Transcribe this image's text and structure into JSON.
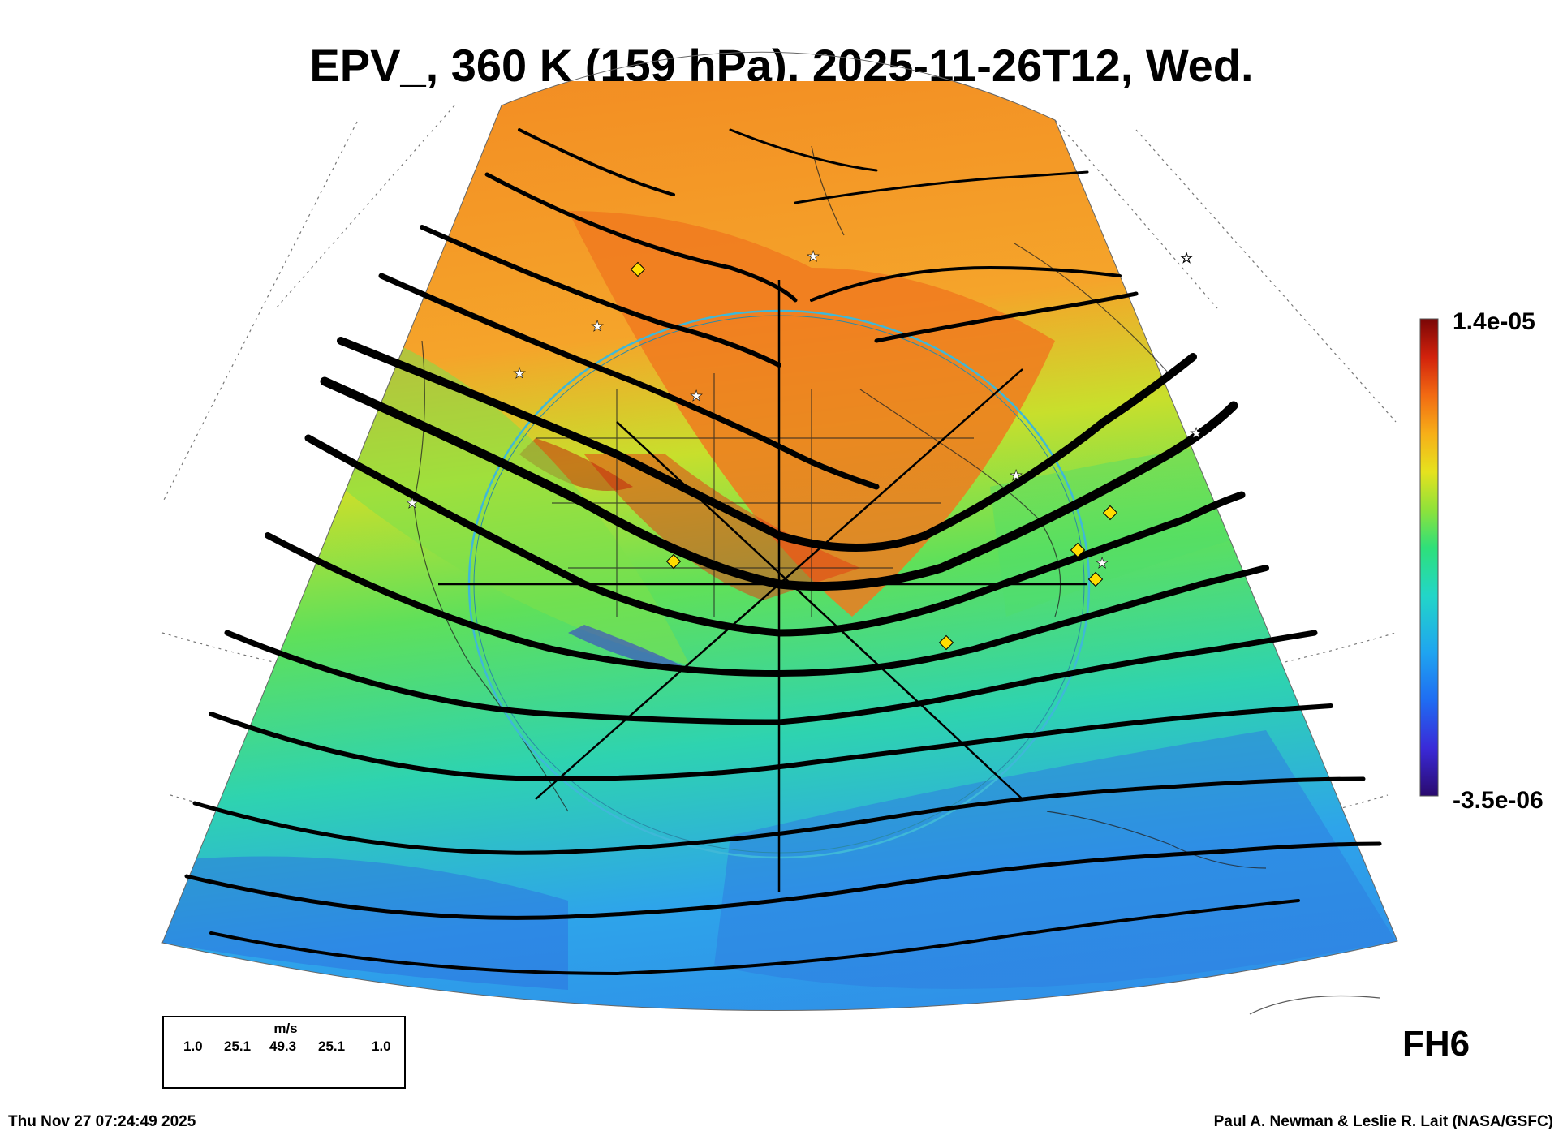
{
  "title": "EPV_, 360 K (159 hPa), 2025-11-26T12, Wed.",
  "colorbar": {
    "max_label": "1.4e-05",
    "min_label": "-3.5e-06",
    "colors": [
      "#2a0a6e",
      "#3a2ad8",
      "#1f6cf2",
      "#1fa4f0",
      "#22d6c8",
      "#2ee07a",
      "#8fe23a",
      "#e6e21e",
      "#f7ae18",
      "#f26a12",
      "#d2220c",
      "#7a0606"
    ]
  },
  "field_colors": {
    "high": "#f29a2a",
    "mid": "#9ee040",
    "low": "#3aa8e8",
    "streamline": "#000000",
    "ring": "#3fb8d8",
    "marker_fill": "#ffdd00"
  },
  "legend": {
    "units": "m/s",
    "values": [
      "1.0",
      "25.1",
      "49.3",
      "25.1",
      "1.0"
    ]
  },
  "forecast_hour": "FH6",
  "footer_left": "Thu Nov 27 07:24:49 2025",
  "footer_right": "Paul A. Newman & Leslie R. Lait (NASA/GSFC)"
}
